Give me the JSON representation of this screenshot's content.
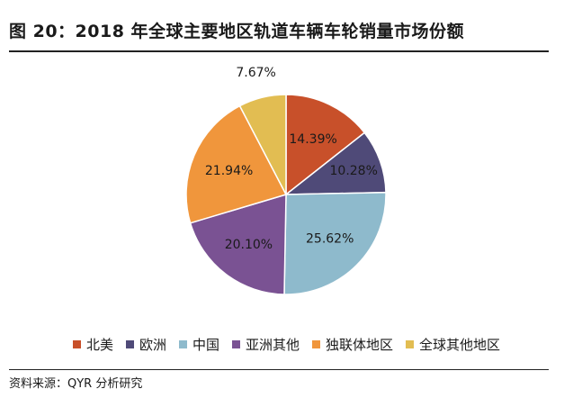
{
  "title": "图 20：2018 年全球主要地区轨道车辆车轮销量市场份额",
  "source": "资料来源：QYR 分析研究",
  "chart_data": {
    "type": "pie",
    "title": "图 20：2018 年全球主要地区轨道车辆车轮销量市场份额",
    "categories": [
      "北美",
      "欧洲",
      "中国",
      "亚洲其他",
      "独联体地区",
      "全球其他地区"
    ],
    "values": [
      14.39,
      10.28,
      25.62,
      20.1,
      21.94,
      7.67
    ],
    "labels": [
      "14.39%",
      "10.28%",
      "25.62%",
      "20.10%",
      "21.94%",
      "7.67%"
    ],
    "colors": [
      "#c8502a",
      "#4f4a78",
      "#8ebacc",
      "#7a5293",
      "#f0963c",
      "#e2bd52"
    ],
    "start_angle_deg": 0,
    "direction": "clockwise",
    "legend": "bottom"
  }
}
